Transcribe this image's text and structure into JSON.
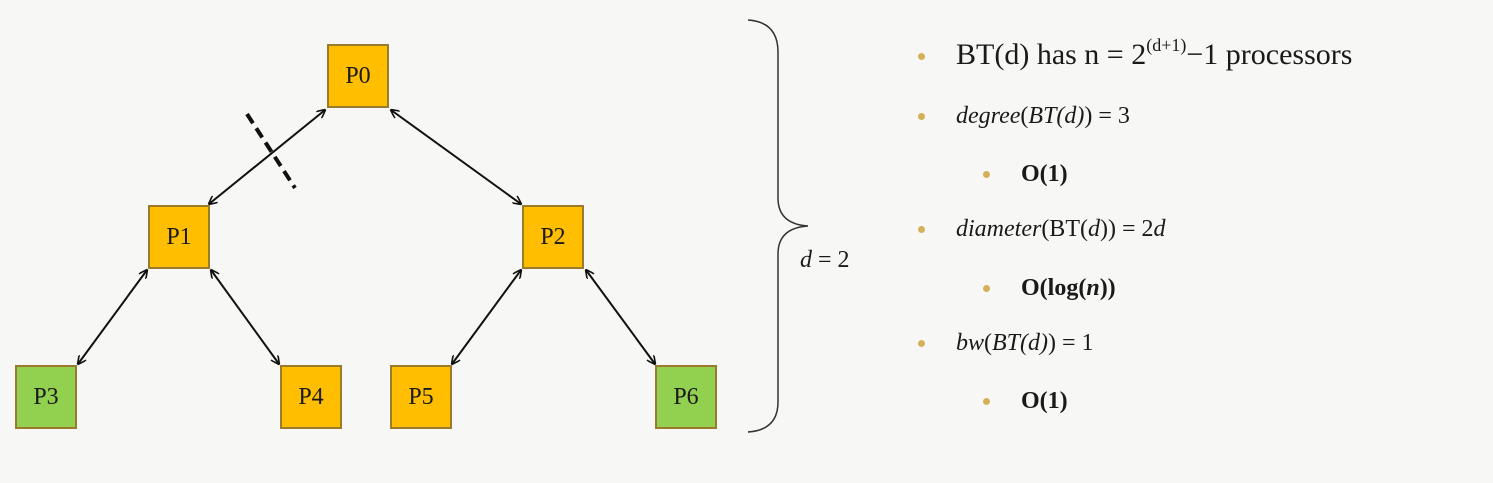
{
  "nodes": [
    {
      "id": "P0",
      "label": "P0",
      "color": "#ffbf00"
    },
    {
      "id": "P1",
      "label": "P1",
      "color": "#ffbf00"
    },
    {
      "id": "P2",
      "label": "P2",
      "color": "#ffbf00"
    },
    {
      "id": "P3",
      "label": "P3",
      "color": "#92d050"
    },
    {
      "id": "P4",
      "label": "P4",
      "color": "#ffbf00"
    },
    {
      "id": "P5",
      "label": "P5",
      "color": "#ffbf00"
    },
    {
      "id": "P6",
      "label": "P6",
      "color": "#92d050"
    }
  ],
  "edges": [
    {
      "from": "P0",
      "to": "P1",
      "direction": "bidirectional",
      "cut": true
    },
    {
      "from": "P0",
      "to": "P2",
      "direction": "bidirectional"
    },
    {
      "from": "P1",
      "to": "P3",
      "direction": "bidirectional"
    },
    {
      "from": "P1",
      "to": "P4",
      "direction": "bidirectional"
    },
    {
      "from": "P2",
      "to": "P5",
      "direction": "bidirectional"
    },
    {
      "from": "P2",
      "to": "P6",
      "direction": "bidirectional"
    }
  ],
  "depth_label": {
    "var": "d",
    "rest": " = 2"
  },
  "bullets": {
    "b1": {
      "pre": "BT(d) has n = 2",
      "sup": "(d+1)",
      "post": "−1 processors"
    },
    "b2": {
      "fn": "degree",
      "open": "(",
      "arg": "BT(d)",
      "close": ") = 3"
    },
    "b2_sub": "O(1)",
    "b3": {
      "fn": "diameter",
      "open": "(BT(",
      "var": "d",
      "close": ")) = 2",
      "var2": "d"
    },
    "b3_sub": {
      "pre": "O(log(",
      "var": "n",
      "post": "))"
    },
    "b4": {
      "fn": "bw",
      "open": "(",
      "arg": "BT(d)",
      "close": ") = 1"
    },
    "b4_sub": "O(1)"
  },
  "colors": {
    "internal": "#ffbf00",
    "leaf_highlight": "#92d050",
    "node_border": "#9a7a2c",
    "bullet": "#d4b05a"
  }
}
